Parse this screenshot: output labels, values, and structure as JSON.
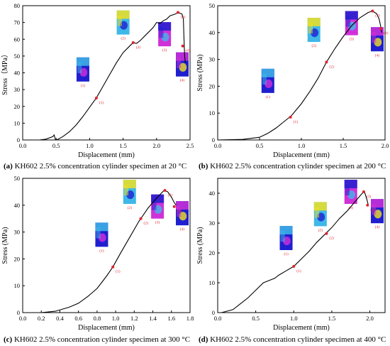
{
  "colors": {
    "curve": "#000000",
    "marker": "#e0242f",
    "sim_low": "#1f1fd0",
    "sim_mid": "#3fb8e8",
    "sim_high": "#f0e020",
    "sim_magenta": "#d030d8"
  },
  "chart_data": [
    {
      "id": "a",
      "type": "line",
      "caption_letter": "(a)",
      "caption_text": " KH602 2.5% concentration cylinder specimen at 20 °C",
      "xlabel": "Displacement (mm)",
      "ylabel": "Stress（MPa）",
      "xlim": [
        0,
        2.5
      ],
      "ylim": [
        0,
        80
      ],
      "xticks": [
        0.0,
        0.5,
        1.0,
        1.5,
        2.0,
        2.5
      ],
      "xtick_labels": [
        "0.0",
        "0.5",
        "1.0",
        "1.5",
        "2.0",
        "2.5"
      ],
      "yticks": [
        0,
        10,
        20,
        30,
        40,
        50,
        60,
        70,
        80
      ],
      "ytick_labels": [
        "0",
        "10",
        "20",
        "30",
        "40",
        "50",
        "60",
        "70",
        "80"
      ],
      "curve": [
        [
          0.0,
          0
        ],
        [
          0.25,
          0
        ],
        [
          0.35,
          0.5
        ],
        [
          0.45,
          2
        ],
        [
          0.47,
          3
        ],
        [
          0.49,
          0
        ],
        [
          0.52,
          0.3
        ],
        [
          0.6,
          2
        ],
        [
          0.7,
          5
        ],
        [
          0.8,
          9
        ],
        [
          0.9,
          14
        ],
        [
          1.0,
          19.5
        ],
        [
          1.1,
          25
        ],
        [
          1.2,
          32
        ],
        [
          1.3,
          39
        ],
        [
          1.4,
          46
        ],
        [
          1.5,
          52
        ],
        [
          1.6,
          56
        ],
        [
          1.65,
          58
        ],
        [
          1.7,
          57.5
        ],
        [
          1.75,
          59
        ],
        [
          1.85,
          63
        ],
        [
          1.95,
          67
        ],
        [
          2.0,
          70
        ],
        [
          2.05,
          69.5
        ],
        [
          2.1,
          71
        ],
        [
          2.15,
          72
        ],
        [
          2.2,
          74
        ],
        [
          2.28,
          75
        ],
        [
          2.32,
          76
        ],
        [
          2.38,
          75
        ],
        [
          2.4,
          72
        ],
        [
          2.41,
          60
        ],
        [
          2.42,
          50
        ],
        [
          2.43,
          46
        ]
      ],
      "points": [
        {
          "label": "(1)",
          "x": 1.1,
          "y": 25
        },
        {
          "label": "(2)",
          "x": 1.65,
          "y": 58
        },
        {
          "label": "(3)",
          "x": 2.32,
          "y": 76
        },
        {
          "label": "(4)",
          "x": 2.39,
          "y": 56
        }
      ],
      "insets": [
        {
          "label": "(1)",
          "x": 0.9,
          "y": 42
        },
        {
          "label": "(2)",
          "x": 1.5,
          "y": 70
        },
        {
          "label": "(3)",
          "x": 2.12,
          "y": 63
        },
        {
          "label": "(4)",
          "x": 2.45,
          "y": 45
        }
      ]
    },
    {
      "id": "b",
      "type": "line",
      "caption_letter": "(b)",
      "caption_text": " KH602 2.5% concentration cylinder specimen at 200 °C",
      "xlabel": "Displacement (mm)",
      "ylabel": "Stress (MPa)",
      "xlim": [
        0,
        2.0
      ],
      "ylim": [
        0,
        50
      ],
      "xticks": [
        0.0,
        0.5,
        1.0,
        1.5,
        2.0
      ],
      "xtick_labels": [
        "0.0",
        "0.5",
        "1.0",
        "1.5",
        "2.0"
      ],
      "yticks": [
        0,
        10,
        20,
        30,
        40,
        50
      ],
      "ytick_labels": [
        "0",
        "10",
        "20",
        "30",
        "40",
        "50"
      ],
      "curve": [
        [
          0.0,
          0
        ],
        [
          0.3,
          0.2
        ],
        [
          0.5,
          1
        ],
        [
          0.6,
          2.5
        ],
        [
          0.7,
          4.5
        ],
        [
          0.8,
          7
        ],
        [
          0.88,
          9
        ],
        [
          1.0,
          13.5
        ],
        [
          1.1,
          18
        ],
        [
          1.2,
          23
        ],
        [
          1.3,
          29
        ],
        [
          1.4,
          34
        ],
        [
          1.5,
          38.5
        ],
        [
          1.6,
          42.5
        ],
        [
          1.7,
          45.5
        ],
        [
          1.8,
          47.5
        ],
        [
          1.85,
          48
        ],
        [
          1.9,
          47
        ],
        [
          1.93,
          45
        ],
        [
          1.95,
          42
        ],
        [
          1.96,
          40
        ]
      ],
      "points": [
        {
          "label": "(1)",
          "x": 0.87,
          "y": 8.5
        },
        {
          "label": "(2)",
          "x": 1.3,
          "y": 29
        },
        {
          "label": "(3)",
          "x": 1.85,
          "y": 48
        },
        {
          "label": "(4)",
          "x": 1.95,
          "y": 41.5
        }
      ],
      "insets": [
        {
          "label": "(1)",
          "x": 0.6,
          "y": 22
        },
        {
          "label": "(2)",
          "x": 1.15,
          "y": 41
        },
        {
          "label": "(3)",
          "x": 1.6,
          "y": 43.5
        },
        {
          "label": "(4)",
          "x": 1.97,
          "y": 37.5
        }
      ]
    },
    {
      "id": "c",
      "type": "line",
      "caption_letter": "(c)",
      "caption_text": " KH602 2.5% concentration cylinder specimen at 300 °C",
      "xlabel": "Displacement (mm)",
      "ylabel": "Stress (MPa)",
      "xlim": [
        0,
        1.8
      ],
      "ylim": [
        0,
        50
      ],
      "xticks": [
        0.0,
        0.2,
        0.4,
        0.6,
        0.8,
        1.0,
        1.2,
        1.4,
        1.6,
        1.8
      ],
      "xtick_labels": [
        "0.0",
        "0.2",
        "0.4",
        "0.6",
        "0.8",
        "1.0",
        "1.2",
        "1.4",
        "1.6",
        "1.8"
      ],
      "yticks": [
        0,
        10,
        20,
        30,
        40,
        50
      ],
      "ytick_labels": [
        "0",
        "10",
        "20",
        "30",
        "40",
        "50"
      ],
      "curve": [
        [
          0.0,
          0
        ],
        [
          0.2,
          0
        ],
        [
          0.35,
          0.5
        ],
        [
          0.5,
          2
        ],
        [
          0.6,
          3.5
        ],
        [
          0.7,
          6
        ],
        [
          0.8,
          9
        ],
        [
          0.9,
          13.5
        ],
        [
          0.97,
          17
        ],
        [
          1.05,
          22
        ],
        [
          1.15,
          28
        ],
        [
          1.25,
          34
        ],
        [
          1.35,
          39
        ],
        [
          1.45,
          43
        ],
        [
          1.52,
          45.5
        ],
        [
          1.56,
          45
        ],
        [
          1.6,
          43
        ],
        [
          1.63,
          41
        ],
        [
          1.65,
          40
        ]
      ],
      "points": [
        {
          "label": "(1)",
          "x": 0.97,
          "y": 17
        },
        {
          "label": "(2)",
          "x": 1.27,
          "y": 35
        },
        {
          "label": "(3)",
          "x": 1.53,
          "y": 45.5
        },
        {
          "label": "(4)",
          "x": 1.63,
          "y": 39.5
        }
      ],
      "insets": [
        {
          "label": "(1)",
          "x": 0.85,
          "y": 29
        },
        {
          "label": "(2)",
          "x": 1.15,
          "y": 46.5
        },
        {
          "label": "(3)",
          "x": 1.45,
          "y": 39.5
        },
        {
          "label": "(4)",
          "x": 1.72,
          "y": 37
        }
      ]
    },
    {
      "id": "d",
      "type": "line",
      "caption_letter": "(d)",
      "caption_text": " KH602 2.5% concentration cylinder specimen at 400 °C",
      "xlabel": "Displacement (mm)",
      "ylabel": "Stress (MPa)",
      "xlim": [
        0,
        2.2
      ],
      "ylim": [
        0,
        45
      ],
      "xticks": [
        0.0,
        0.5,
        1.0,
        1.5,
        2.0
      ],
      "xtick_labels": [
        "0.0",
        "0.5",
        "1.0",
        "1.5",
        "2.0"
      ],
      "yticks": [
        0,
        10,
        20,
        30,
        40
      ],
      "ytick_labels": [
        "0",
        "10",
        "20",
        "30",
        "40"
      ],
      "curve": [
        [
          0.05,
          0
        ],
        [
          0.2,
          1
        ],
        [
          0.3,
          3
        ],
        [
          0.4,
          5
        ],
        [
          0.5,
          7.5
        ],
        [
          0.6,
          10
        ],
        [
          0.7,
          11
        ],
        [
          0.75,
          11.5
        ],
        [
          0.8,
          12.5
        ],
        [
          0.9,
          14
        ],
        [
          1.0,
          15.5
        ],
        [
          1.1,
          18
        ],
        [
          1.2,
          20.5
        ],
        [
          1.3,
          23.5
        ],
        [
          1.4,
          26
        ],
        [
          1.5,
          28.5
        ],
        [
          1.6,
          31.5
        ],
        [
          1.7,
          34
        ],
        [
          1.8,
          37
        ],
        [
          1.9,
          40
        ],
        [
          1.93,
          40.5
        ],
        [
          1.96,
          38
        ],
        [
          1.98,
          36
        ]
      ],
      "points": [
        {
          "label": "(1)",
          "x": 1.0,
          "y": 15.5
        },
        {
          "label": "(2)",
          "x": 1.43,
          "y": 26.5
        },
        {
          "label": "(3)",
          "x": 1.92,
          "y": 40.5
        },
        {
          "label": "(4)",
          "x": 1.97,
          "y": 36
        }
      ],
      "insets": [
        {
          "label": "(1)",
          "x": 0.9,
          "y": 25
        },
        {
          "label": "(2)",
          "x": 1.35,
          "y": 33
        },
        {
          "label": "(3)",
          "x": 1.75,
          "y": 44
        },
        {
          "label": "(4)",
          "x": 2.12,
          "y": 34
        }
      ]
    }
  ]
}
